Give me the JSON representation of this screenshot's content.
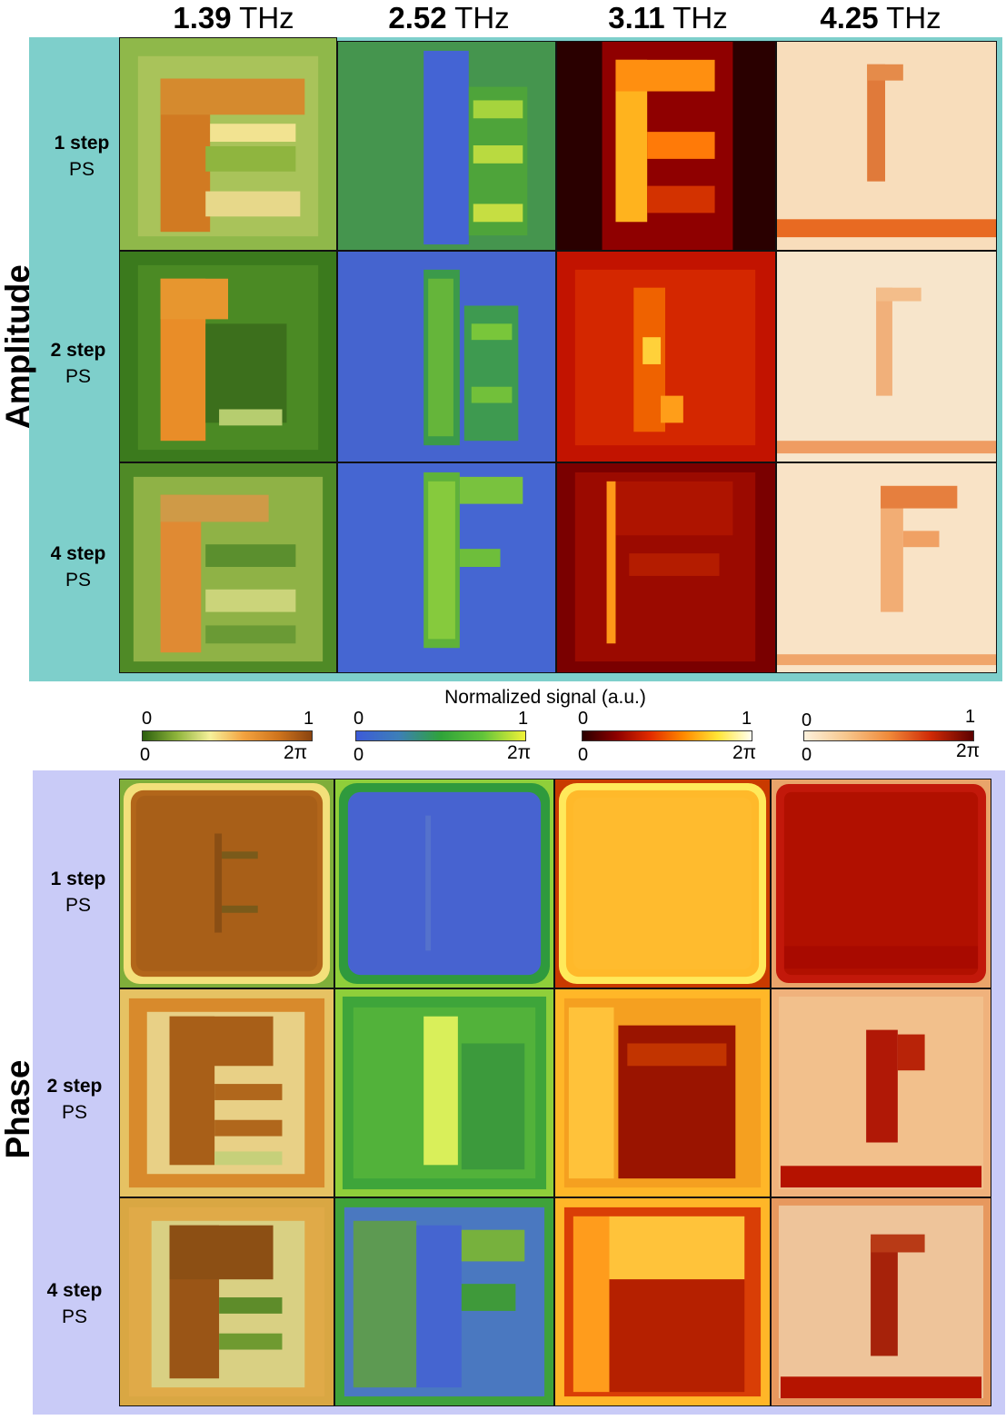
{
  "columns": [
    {
      "bold": "1.39",
      "unit": "THz"
    },
    {
      "bold": "2.52",
      "unit": "THz"
    },
    {
      "bold": "3.11",
      "unit": "THz"
    },
    {
      "bold": "4.25",
      "unit": "THz"
    }
  ],
  "sections": {
    "amplitude": "Amplitude",
    "phase": "Phase"
  },
  "rows": [
    {
      "line1": "1 step",
      "line2": "PS"
    },
    {
      "line1": "2 step",
      "line2": "PS"
    },
    {
      "line1": "4 step",
      "line2": "PS"
    }
  ],
  "colorbar": {
    "title": "Normalized signal (a.u.)",
    "amp_min": "0",
    "amp_max": "1",
    "phase_min": "0",
    "phase_max": "2π",
    "colormaps": [
      {
        "name": "green-orange",
        "stops": [
          "#2c5f0e",
          "#8db43a",
          "#f6f09a",
          "#f3a23f",
          "#d0751d",
          "#8a4410"
        ]
      },
      {
        "name": "blue-green-yellow",
        "stops": [
          "#3d5bd8",
          "#3d7fb8",
          "#2fa33a",
          "#62c43a",
          "#f1f237"
        ]
      },
      {
        "name": "dark-red-yellow",
        "stops": [
          "#2a0000",
          "#8c0000",
          "#e22b00",
          "#ff8a00",
          "#ffe536",
          "#fffff0"
        ]
      },
      {
        "name": "cream-red",
        "stops": [
          "#fdf1dc",
          "#f7c68c",
          "#f08a3a",
          "#cf2a06",
          "#5c0000"
        ]
      }
    ]
  }
}
